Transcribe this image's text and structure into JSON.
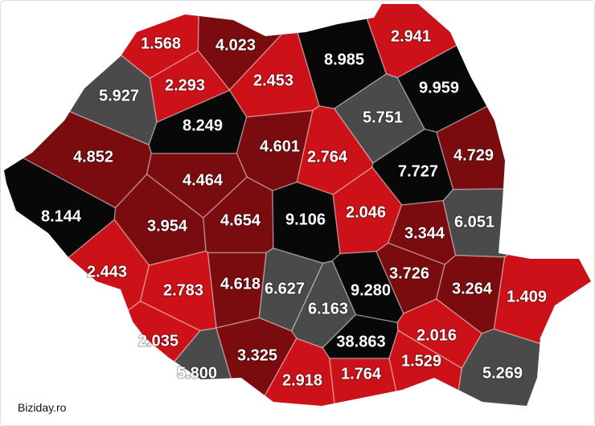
{
  "counties": [
    {
      "label": "1.568",
      "color": "#cc1119"
    },
    {
      "label": "4.023",
      "color": "#7a0b0e"
    },
    {
      "label": "8.985",
      "color": "#080808"
    },
    {
      "label": "2.941",
      "color": "#cc1119"
    },
    {
      "label": "5.927",
      "color": "#4a4a4a"
    },
    {
      "label": "2.293",
      "color": "#cc1119"
    },
    {
      "label": "2.453",
      "color": "#cc1119"
    },
    {
      "label": "9.959",
      "color": "#080808"
    },
    {
      "label": "8.249",
      "color": "#080808"
    },
    {
      "label": "5.751",
      "color": "#4a4a4a"
    },
    {
      "label": "4.852",
      "color": "#7a0b0e"
    },
    {
      "label": "4.601",
      "color": "#7a0b0e"
    },
    {
      "label": "2.764",
      "color": "#cc1119"
    },
    {
      "label": "7.727",
      "color": "#080808"
    },
    {
      "label": "4.729",
      "color": "#7a0b0e"
    },
    {
      "label": "4.464",
      "color": "#7a0b0e"
    },
    {
      "label": "8.144",
      "color": "#080808"
    },
    {
      "label": "3.954",
      "color": "#7a0b0e"
    },
    {
      "label": "4.654",
      "color": "#7a0b0e"
    },
    {
      "label": "9.106",
      "color": "#080808"
    },
    {
      "label": "2.046",
      "color": "#cc1119"
    },
    {
      "label": "3.344",
      "color": "#7a0b0e"
    },
    {
      "label": "6.051",
      "color": "#4a4a4a"
    },
    {
      "label": "2.443",
      "color": "#cc1119"
    },
    {
      "label": "2.783",
      "color": "#cc1119"
    },
    {
      "label": "4.618",
      "color": "#7a0b0e"
    },
    {
      "label": "6.627",
      "color": "#4a4a4a"
    },
    {
      "label": "9.280",
      "color": "#080808"
    },
    {
      "label": "3.726",
      "color": "#7a0b0e"
    },
    {
      "label": "3.264",
      "color": "#7a0b0e"
    },
    {
      "label": "1.409",
      "color": "#cc1119"
    },
    {
      "label": "6.163",
      "color": "#4a4a4a"
    },
    {
      "label": "2.035",
      "color": "#cc1119"
    },
    {
      "label": "5.800",
      "color": "#4a4a4a"
    },
    {
      "label": "3.325",
      "color": "#7a0b0e"
    },
    {
      "label": "38.863",
      "color": "#080808"
    },
    {
      "label": "2.016",
      "color": "#cc1119"
    },
    {
      "label": "1.529",
      "color": "#cc1119"
    },
    {
      "label": "2.918",
      "color": "#cc1119"
    },
    {
      "label": "1.764",
      "color": "#cc1119"
    },
    {
      "label": "5.269",
      "color": "#4a4a4a"
    }
  ],
  "source": "Biziday.ro"
}
